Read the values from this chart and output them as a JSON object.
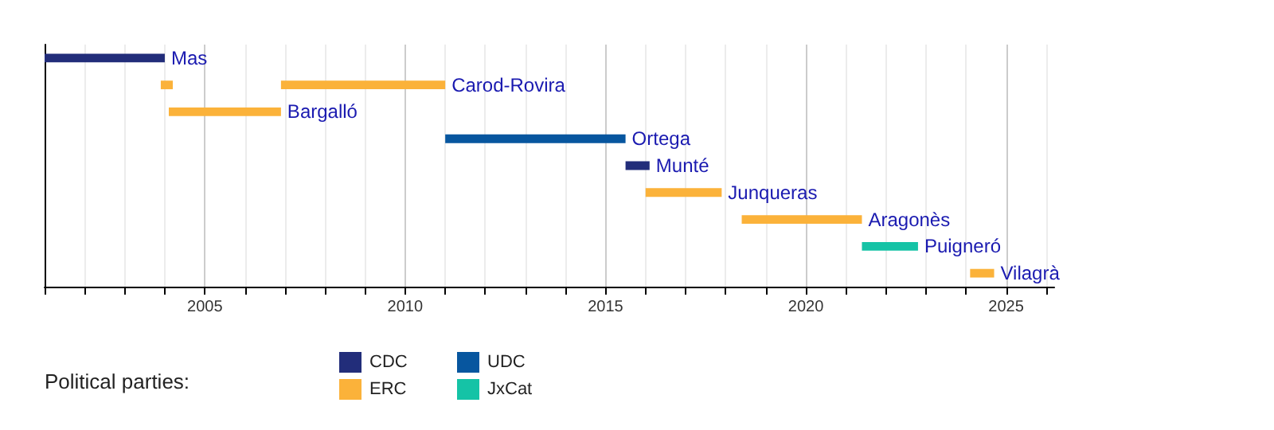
{
  "chart_data": {
    "type": "bar",
    "orientation": "horizontal",
    "categories": [
      "Mas",
      "Carod-Rovira",
      "Bargalló",
      "Ortega",
      "Munté",
      "Junqueras",
      "Aragonès",
      "Puigneró",
      "Vilagrà"
    ],
    "series": [
      {
        "name": "CDC",
        "color": "#222d7a",
        "base": [
          2001.0,
          null,
          null,
          null,
          2015.5,
          null,
          null,
          null,
          null
        ],
        "values": [
          3.0,
          null,
          null,
          null,
          0.6,
          null,
          null,
          null,
          null
        ]
      },
      {
        "name": "ERC",
        "color": "#fbb23a",
        "base": [
          null,
          2006.9,
          2004.1,
          null,
          null,
          2016.0,
          2018.4,
          null,
          2024.1
        ],
        "values": [
          null,
          4.1,
          2.8,
          null,
          null,
          1.9,
          3.0,
          null,
          0.6
        ]
      },
      {
        "color": "#fbb23a",
        "base": [
          null,
          2003.9,
          null,
          null,
          null,
          null,
          null,
          null,
          null
        ],
        "values": [
          null,
          0.3,
          null,
          null,
          null,
          null,
          null,
          null,
          null
        ]
      },
      {
        "name": "UDC",
        "color": "#07569f",
        "base": [
          null,
          null,
          null,
          2011.0,
          null,
          null,
          null,
          null,
          null
        ],
        "values": [
          null,
          null,
          null,
          4.5,
          null,
          null,
          null,
          null,
          null
        ]
      },
      {
        "name": "JxCat",
        "color": "#15c3a6",
        "base": [
          null,
          null,
          null,
          null,
          null,
          null,
          null,
          2021.4,
          null
        ],
        "values": [
          null,
          null,
          null,
          null,
          null,
          null,
          null,
          1.4,
          null
        ]
      }
    ],
    "xlim": [
      2001,
      2026.2
    ],
    "xticks": [
      {
        "value": 2001,
        "label": null
      },
      {
        "value": 2002,
        "label": null
      },
      {
        "value": 2003,
        "label": null
      },
      {
        "value": 2004,
        "label": null
      },
      2005,
      {
        "value": 2006,
        "label": null
      },
      {
        "value": 2007,
        "label": null
      },
      {
        "value": 2008,
        "label": null
      },
      {
        "value": 2009,
        "label": null
      },
      2010,
      {
        "value": 2011,
        "label": null
      },
      {
        "value": 2012,
        "label": null
      },
      {
        "value": 2013,
        "label": null
      },
      {
        "value": 2014,
        "label": null
      },
      2015,
      {
        "value": 2016,
        "label": null
      },
      {
        "value": 2017,
        "label": null
      },
      {
        "value": 2018,
        "label": null
      },
      {
        "value": 2019,
        "label": null
      },
      2020,
      {
        "value": 2021,
        "label": null
      },
      {
        "value": 2022,
        "label": null
      },
      {
        "value": 2023,
        "label": null
      },
      {
        "value": 2024,
        "label": null
      },
      2025,
      {
        "value": 2026,
        "label": null
      }
    ],
    "grid": "x",
    "tick_labels": "x",
    "legend": "bottom left",
    "legend_title": "Political parties:"
  }
}
